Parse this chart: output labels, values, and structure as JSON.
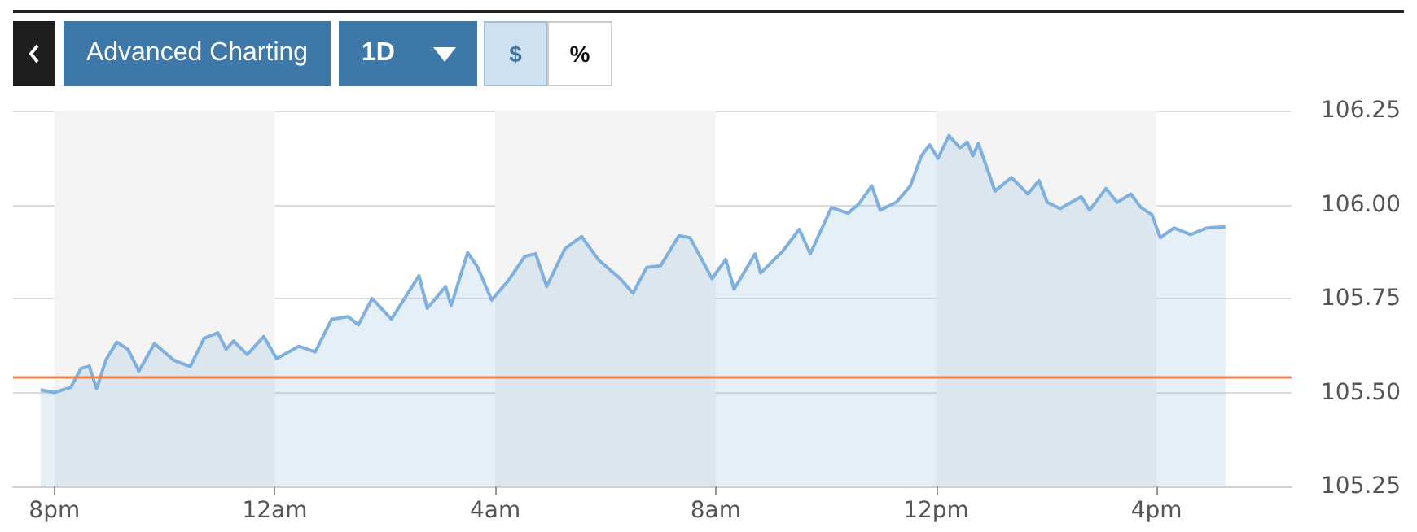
{
  "chart_data": {
    "type": "area",
    "annotations": [
      "Advanced Charting",
      "1D",
      "$",
      "%"
    ],
    "x": [
      "--01-01T19:45",
      "--01-01T20:00",
      "--01-01T20:18",
      "--01-01T20:29",
      "--01-01T20:38",
      "--01-01T20:46",
      "--01-01T20:56",
      "--01-01T21:08",
      "--01-01T21:20",
      "--01-01T21:32",
      "--01-01T21:49",
      "--01-01T22:10",
      "--01-01T22:28",
      "--01-01T22:43",
      "--01-01T22:58",
      "--01-01T23:07",
      "--01-01T23:15",
      "--01-01T23:30",
      "--01-01T23:48",
      "--01-02T00:02",
      "--01-02T00:26",
      "--01-02T00:44",
      "--01-02T01:02",
      "--01-02T01:20",
      "--01-02T01:31",
      "--01-02T01:46",
      "--01-02T02:07",
      "--01-02T02:37",
      "--01-02T02:46",
      "--01-02T03:06",
      "--01-02T03:12",
      "--01-02T03:30",
      "--01-02T03:41",
      "--01-02T03:56",
      "--01-02T04:14",
      "--01-02T04:32",
      "--01-02T04:44",
      "--01-02T04:56",
      "--01-02T05:16",
      "--01-02T05:34",
      "--01-02T05:52",
      "--01-02T06:16",
      "--01-02T06:30",
      "--01-02T06:45",
      "--01-02T07:00",
      "--01-02T07:20",
      "--01-02T07:32",
      "--01-02T07:56",
      "--01-02T08:11",
      "--01-02T08:20",
      "--01-02T08:43",
      "--01-02T08:49",
      "--01-02T09:13",
      "--01-02T09:31",
      "--01-02T09:43",
      "--01-02T10:06",
      "--01-02T10:24",
      "--01-02T10:36",
      "--01-02T10:50",
      "--01-02T10:59",
      "--01-02T11:17",
      "--01-02T11:32",
      "--01-02T11:44",
      "--01-02T11:53",
      "--01-02T12:02",
      "--01-02T12:14",
      "--01-02T12:26",
      "--01-02T12:34",
      "--01-02T12:40",
      "--01-02T12:46",
      "--01-02T12:58",
      "--01-02T13:04",
      "--01-02T13:22",
      "--01-02T13:40",
      "--01-02T13:52",
      "--01-02T14:01",
      "--01-02T14:15",
      "--01-02T14:38",
      "--01-02T14:47",
      "--01-02T15:05",
      "--01-02T15:17",
      "--01-02T15:32",
      "--01-02T15:43",
      "--01-02T15:55",
      "--01-02T16:04",
      "--01-02T16:19",
      "--01-02T16:37",
      "--01-02T16:55",
      "--01-02T17:15"
    ],
    "series": [
      {
        "color": "#7fb0de",
        "values": [
          105.507,
          105.5,
          105.514,
          105.564,
          105.57,
          105.51,
          105.586,
          105.634,
          105.615,
          105.557,
          105.63,
          105.586,
          105.569,
          105.644,
          105.659,
          105.615,
          105.637,
          105.601,
          105.649,
          105.59,
          105.623,
          105.608,
          105.695,
          105.702,
          105.68,
          105.75,
          105.695,
          105.811,
          105.724,
          105.782,
          105.731,
          105.872,
          105.833,
          105.746,
          105.797,
          105.862,
          105.869,
          105.782,
          105.883,
          105.915,
          105.854,
          105.803,
          105.764,
          105.833,
          105.837,
          105.917,
          105.912,
          105.803,
          105.854,
          105.775,
          105.869,
          105.818,
          105.876,
          105.934,
          105.869,
          105.992,
          105.977,
          106.002,
          106.05,
          105.985,
          106.007,
          106.05,
          106.13,
          106.159,
          106.123,
          106.183,
          106.151,
          106.166,
          106.13,
          106.162,
          106.079,
          106.036,
          106.072,
          106.028,
          106.064,
          106.006,
          105.989,
          106.021,
          105.985,
          106.043,
          106.006,
          106.028,
          105.992,
          105.973,
          105.912,
          105.938,
          105.92,
          105.938,
          105.941
        ]
      }
    ],
    "xlim": [
      "--01-01T19:15",
      "--01-02T18:27"
    ],
    "xticks": [
      {
        "value": "--01-01T20:00",
        "label": "8pm"
      },
      {
        "value": "--01-02T00:00",
        "label": "12am"
      },
      {
        "value": "--01-02T04:00",
        "label": "4am"
      },
      {
        "value": "--01-02T08:00",
        "label": "8am"
      },
      {
        "value": "--01-02T12:00",
        "label": "12pm"
      },
      {
        "value": "--01-02T16:00",
        "label": "4pm"
      }
    ],
    "ylim": [
      105.25,
      106.25
    ],
    "yticks": [
      105.25,
      {
        "value": 105.5,
        "label": "105.50"
      },
      105.75,
      {
        "value": 106.0,
        "label": "106.00"
      },
      106.25
    ],
    "ref_lines": [
      {
        "axis": "y",
        "value": 105.54,
        "color": "#e8834f"
      }
    ],
    "bands": [
      {
        "axis": "x",
        "from": "--01-01T20:00",
        "to": "--01-02T00:00",
        "color": "#f4f4f4"
      },
      {
        "axis": "x",
        "from": "--01-02T04:00",
        "to": "--01-02T08:00",
        "color": "#f4f4f4"
      },
      {
        "axis": "x",
        "from": "--01-02T12:00",
        "to": "--01-02T16:00",
        "color": "#f4f4f4"
      }
    ],
    "grid": "y",
    "marker": "none"
  }
}
